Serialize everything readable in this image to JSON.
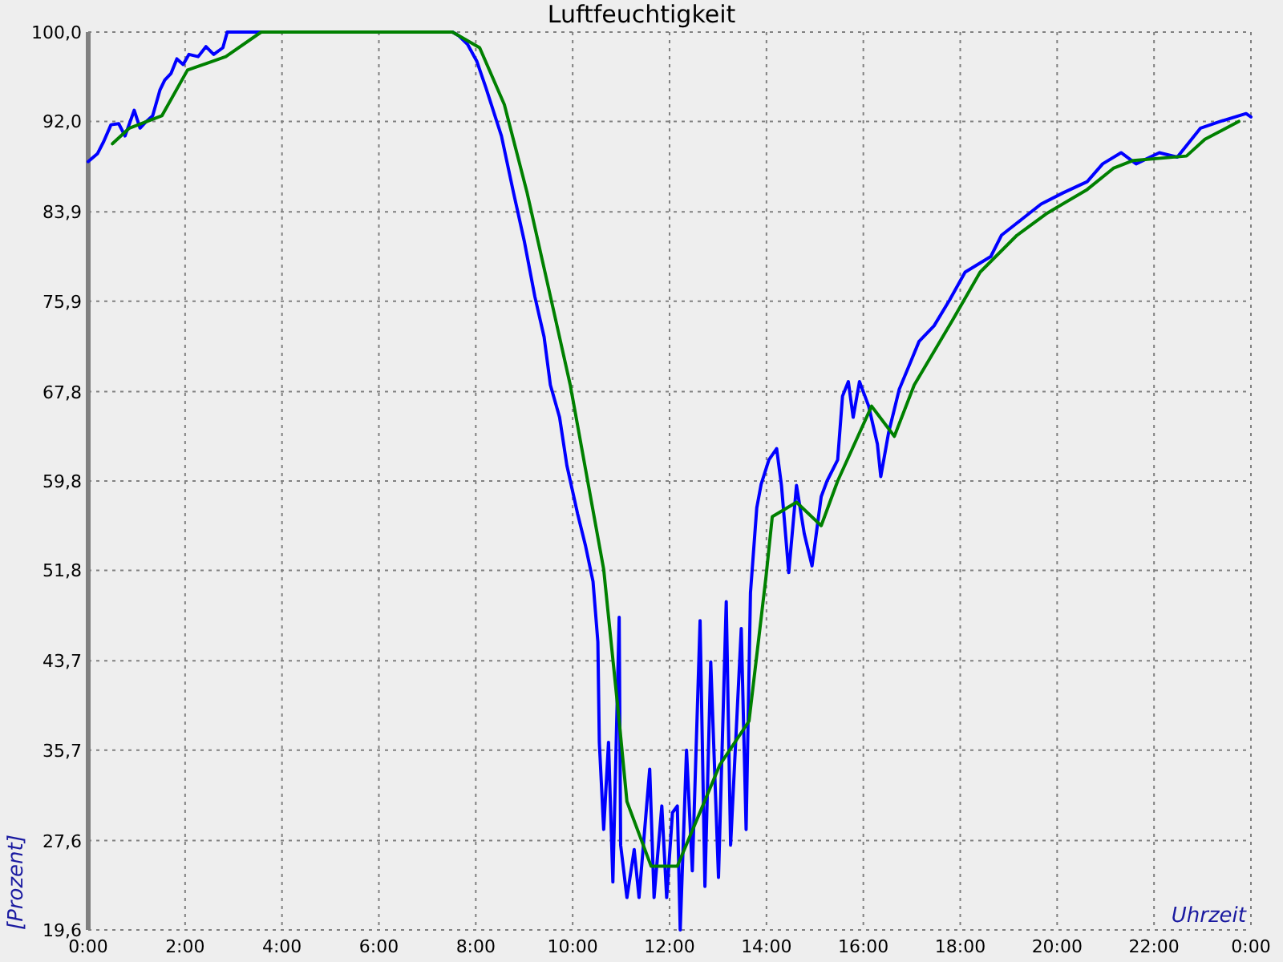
{
  "chart_data": {
    "type": "line",
    "title": "Luftfeuchtigkeit",
    "xlabel": "Uhrzeit",
    "ylabel": "[Prozent]",
    "xlim": [
      0,
      24
    ],
    "ylim": [
      19.6,
      100
    ],
    "xticks": [
      {
        "value": 0,
        "label": "0:00"
      },
      {
        "value": 2,
        "label": "2:00"
      },
      {
        "value": 4,
        "label": "4:00"
      },
      {
        "value": 6,
        "label": "6:00"
      },
      {
        "value": 8,
        "label": "8:00"
      },
      {
        "value": 10,
        "label": "10:00"
      },
      {
        "value": 12,
        "label": "12:00"
      },
      {
        "value": 14,
        "label": "14:00"
      },
      {
        "value": 16,
        "label": "16:00"
      },
      {
        "value": 18,
        "label": "18:00"
      },
      {
        "value": 20,
        "label": "20:00"
      },
      {
        "value": 22,
        "label": "22:00"
      },
      {
        "value": 24,
        "label": "0:00"
      }
    ],
    "yticks": [
      {
        "value": 19.6,
        "label": "19,6"
      },
      {
        "value": 27.6,
        "label": "27,6"
      },
      {
        "value": 35.7,
        "label": "35,7"
      },
      {
        "value": 43.7,
        "label": "43,7"
      },
      {
        "value": 51.8,
        "label": "51,8"
      },
      {
        "value": 59.8,
        "label": "59,8"
      },
      {
        "value": 67.8,
        "label": "67,8"
      },
      {
        "value": 75.9,
        "label": "75,9"
      },
      {
        "value": 83.9,
        "label": "83,9"
      },
      {
        "value": 92.0,
        "label": "92,0"
      },
      {
        "value": 100.0,
        "label": "100,0"
      }
    ],
    "grid": true,
    "line_style": "solid",
    "series": [
      {
        "color": "#0000ff",
        "x": [
          0,
          0.19,
          0.32,
          0.47,
          0.63,
          0.76,
          0.95,
          1.07,
          1.2,
          1.33,
          1.48,
          1.58,
          1.71,
          1.83,
          1.96,
          2.08,
          2.27,
          2.43,
          2.59,
          2.78,
          2.87,
          3.47,
          7.52,
          7.64,
          7.83,
          8.02,
          8.21,
          8.53,
          8.78,
          9.0,
          9.22,
          9.41,
          9.54,
          9.73,
          9.88,
          10.1,
          10.26,
          10.42,
          10.52,
          10.55,
          10.64,
          10.74,
          10.83,
          10.96,
          10.99,
          11.12,
          11.27,
          11.37,
          11.59,
          11.68,
          11.84,
          11.94,
          12.06,
          12.16,
          12.22,
          12.35,
          12.47,
          12.63,
          12.73,
          12.85,
          13.01,
          13.17,
          13.26,
          13.48,
          13.58,
          13.67,
          13.8,
          13.89,
          14.05,
          14.21,
          14.31,
          14.46,
          14.62,
          14.78,
          14.94,
          15.13,
          15.25,
          15.47,
          15.57,
          15.69,
          15.79,
          15.92,
          16.11,
          16.29,
          16.36,
          16.52,
          16.74,
          16.96,
          17.15,
          17.46,
          17.78,
          18.1,
          18.63,
          18.85,
          19.26,
          19.67,
          20.12,
          20.62,
          20.94,
          21.32,
          21.63,
          22.11,
          22.48,
          22.96,
          23.37,
          23.9,
          24
        ],
        "values": [
          88.4,
          89.1,
          90.2,
          91.7,
          91.8,
          90.7,
          93.0,
          91.4,
          92.0,
          92.5,
          94.8,
          95.7,
          96.3,
          97.6,
          97.1,
          98.0,
          97.8,
          98.7,
          98.0,
          98.6,
          100,
          100,
          100,
          99.7,
          98.9,
          97.4,
          95.0,
          90.7,
          85.6,
          81.3,
          76.3,
          72.7,
          68.4,
          65.5,
          61.2,
          56.9,
          54.1,
          50.8,
          45.4,
          36.4,
          28.6,
          36.4,
          23.9,
          47.6,
          27.2,
          22.5,
          26.8,
          22.5,
          34.0,
          22.5,
          30.7,
          22.5,
          30.1,
          30.7,
          19.6,
          35.7,
          24.9,
          47.3,
          23.5,
          43.6,
          24.3,
          49.0,
          27.2,
          46.6,
          28.6,
          49.8,
          57.4,
          59.5,
          61.7,
          62.7,
          59.4,
          51.6,
          59.4,
          55.1,
          52.2,
          58.4,
          59.8,
          61.7,
          67.4,
          68.7,
          65.5,
          68.7,
          66.5,
          63.1,
          60.2,
          64.1,
          68.0,
          70.3,
          72.3,
          73.7,
          76.0,
          78.5,
          79.9,
          81.8,
          83.2,
          84.6,
          85.6,
          86.6,
          88.2,
          89.2,
          88.2,
          89.2,
          88.8,
          91.4,
          92.0,
          92.7,
          92.4
        ]
      },
      {
        "color": "#008000",
        "x": [
          0.5,
          0.85,
          1.52,
          2.05,
          2.84,
          3.57,
          7.52,
          8.08,
          8.59,
          9.06,
          9.47,
          9.95,
          10.64,
          10.96,
          11.12,
          11.62,
          12.16,
          13.04,
          13.64,
          13.99,
          14.12,
          14.62,
          15.13,
          15.47,
          16.17,
          16.64,
          17.05,
          17.84,
          18.41,
          19.17,
          19.8,
          20.62,
          21.16,
          21.57,
          22.67,
          23.05,
          23.75
        ],
        "values": [
          90.0,
          91.4,
          92.5,
          96.6,
          97.8,
          100,
          100,
          98.6,
          93.5,
          85.6,
          77.7,
          68.4,
          51.9,
          38.3,
          31.1,
          25.3,
          25.3,
          34.4,
          38.3,
          51.2,
          56.6,
          57.9,
          55.8,
          59.8,
          66.5,
          63.8,
          68.4,
          74.2,
          78.5,
          81.8,
          83.8,
          85.9,
          87.8,
          88.5,
          88.9,
          90.4,
          92.0
        ]
      }
    ]
  }
}
